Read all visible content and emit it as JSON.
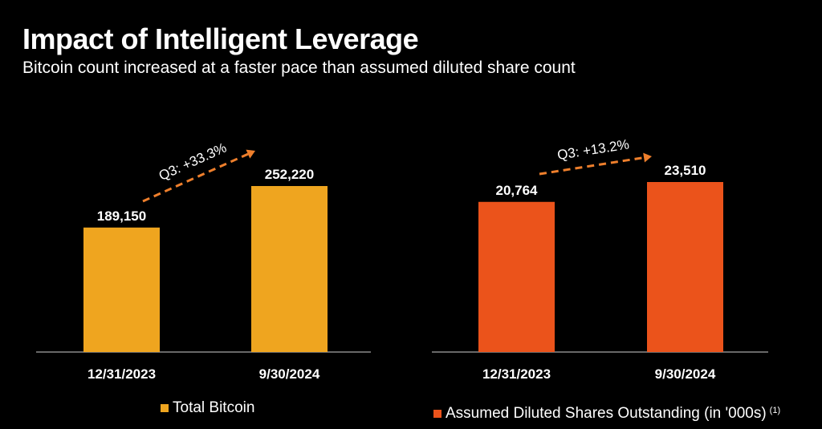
{
  "header": {
    "title": "Impact of Intelligent Leverage",
    "subtitle": "Bitcoin count increased at a faster pace than assumed diluted share count"
  },
  "chart_data": [
    {
      "type": "bar",
      "categories": [
        "12/31/2023",
        "9/30/2024"
      ],
      "series": [
        {
          "name": "Total Bitcoin",
          "values": [
            189150,
            252220
          ]
        }
      ],
      "data_labels": [
        "189,150",
        "252,220"
      ],
      "annotation": "Q3: +33.3%",
      "color": "#EFA51F",
      "grid": false,
      "legend_position": "bottom"
    },
    {
      "type": "bar",
      "categories": [
        "12/31/2023",
        "9/30/2024"
      ],
      "series": [
        {
          "name": "Assumed Diluted Shares Outstanding (in '000s)",
          "values": [
            20764,
            23510
          ]
        }
      ],
      "data_labels": [
        "20,764",
        "23,510"
      ],
      "annotation": "Q3: +13.2%",
      "footnote_marker": "(1)",
      "color": "#EB531B",
      "grid": false,
      "legend_position": "bottom"
    }
  ],
  "colors": {
    "background": "#000000",
    "axis": "#8a8a8a",
    "arrow": "#EE7F2C",
    "text": "#ffffff"
  }
}
